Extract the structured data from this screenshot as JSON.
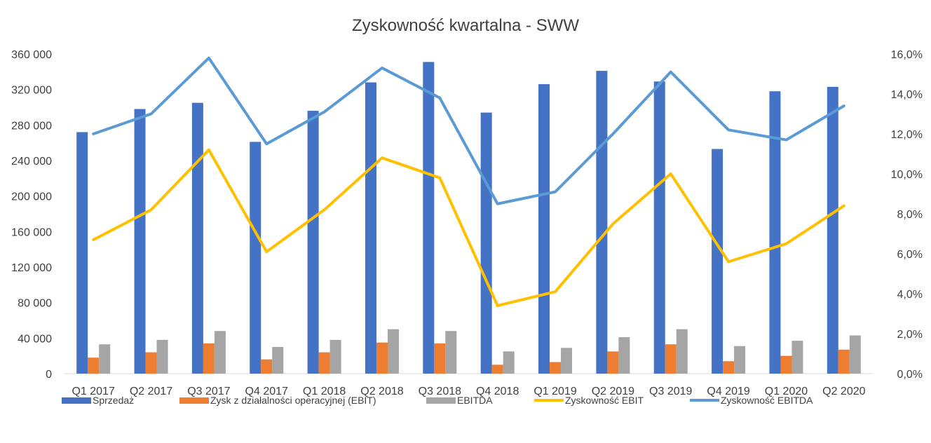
{
  "chart_data": {
    "type": "bar",
    "title": "Zyskowność kwartalna - SWW",
    "categories": [
      "Q1 2017",
      "Q2 2017",
      "Q3 2017",
      "Q4 2017",
      "Q1 2018",
      "Q2 2018",
      "Q3 2018",
      "Q4 2018",
      "Q1 2019",
      "Q2 2019",
      "Q3 2019",
      "Q4 2019",
      "Q1 2020",
      "Q2 2020"
    ],
    "y_left": {
      "ylim": [
        0,
        360000
      ],
      "ticks": [
        0,
        40000,
        80000,
        120000,
        160000,
        200000,
        240000,
        280000,
        320000,
        360000
      ],
      "tick_labels": [
        "0",
        "40 000",
        "80 000",
        "120 000",
        "160 000",
        "200 000",
        "240 000",
        "280 000",
        "320 000",
        "360 000"
      ]
    },
    "y_right": {
      "ylim": [
        0,
        16
      ],
      "ticks": [
        0,
        2,
        4,
        6,
        8,
        10,
        12,
        14,
        16
      ],
      "tick_labels": [
        "0,0%",
        "2,0%",
        "4,0%",
        "6,0%",
        "8,0%",
        "10,0%",
        "12,0%",
        "14,0%",
        "16,0%"
      ]
    },
    "grid": false,
    "legend_position": "bottom",
    "series": [
      {
        "name": "Sprzedaż",
        "type": "bar",
        "axis": "left",
        "color": "#4472C4",
        "values": [
          272000,
          298000,
          305000,
          261000,
          296000,
          328000,
          351000,
          294000,
          326000,
          341000,
          329000,
          253000,
          318000,
          323000
        ]
      },
      {
        "name": "Zysk z działalności operacyjnej (EBIT)",
        "type": "bar",
        "axis": "left",
        "color": "#ED7D31",
        "values": [
          18000,
          24000,
          34000,
          16000,
          24000,
          35000,
          34000,
          10000,
          13000,
          25000,
          33000,
          14000,
          20000,
          27000
        ]
      },
      {
        "name": "EBITDA",
        "type": "bar",
        "axis": "left",
        "color": "#A5A5A5",
        "values": [
          33000,
          38000,
          48000,
          30000,
          38000,
          50000,
          48000,
          25000,
          29000,
          41000,
          50000,
          31000,
          37000,
          43000
        ]
      },
      {
        "name": "Zyskowność EBIT",
        "type": "line",
        "axis": "right",
        "color": "#FFC000",
        "values": [
          6.7,
          8.2,
          11.2,
          6.1,
          8.2,
          10.8,
          9.8,
          3.4,
          4.1,
          7.5,
          10.0,
          5.6,
          6.5,
          8.4
        ]
      },
      {
        "name": "Zyskowność EBITDA",
        "type": "line",
        "axis": "right",
        "color": "#5B9BD5",
        "values": [
          12.0,
          13.0,
          15.8,
          11.5,
          13.1,
          15.3,
          13.8,
          8.5,
          9.1,
          12.0,
          15.1,
          12.2,
          11.7,
          13.4
        ]
      }
    ]
  }
}
